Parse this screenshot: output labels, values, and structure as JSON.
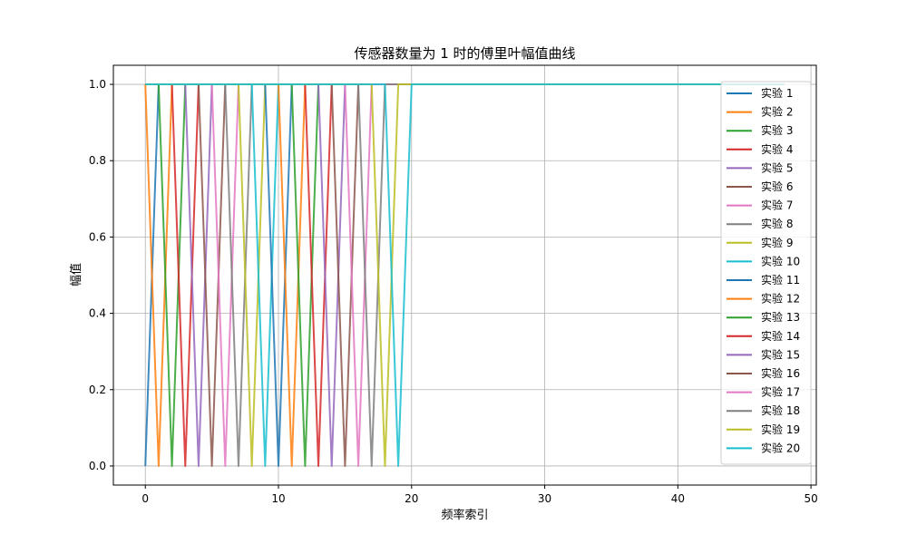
{
  "chart_data": {
    "type": "line",
    "title": "传感器数量为 1 时的傅里叶幅值曲线",
    "xlabel": "频率索引",
    "ylabel": "幅值",
    "xlim": [
      -2.4,
      50.4
    ],
    "ylim": [
      -0.05,
      1.05
    ],
    "xticks": [
      0,
      10,
      20,
      30,
      40,
      50
    ],
    "yticks": [
      0.0,
      0.2,
      0.4,
      0.6,
      0.8,
      1.0
    ],
    "xtick_labels": [
      "0",
      "10",
      "20",
      "30",
      "40",
      "50"
    ],
    "ytick_labels": [
      "0.0",
      "0.2",
      "0.4",
      "0.6",
      "0.8",
      "1.0"
    ],
    "grid": true,
    "legend_position": "right",
    "x": [
      0,
      1,
      2,
      3,
      4,
      5,
      6,
      7,
      8,
      9,
      10,
      11,
      12,
      13,
      14,
      15,
      16,
      17,
      18,
      19,
      20,
      21,
      22,
      23,
      24,
      25,
      26,
      27,
      28,
      29,
      30,
      31,
      32,
      33,
      34,
      35,
      36,
      37,
      38,
      39,
      40,
      41,
      42,
      43,
      44,
      45,
      46,
      47,
      48
    ],
    "series": [
      {
        "name": "实验 1",
        "color": "#1f77b4",
        "peak": 0
      },
      {
        "name": "实验 2",
        "color": "#ff7f0e",
        "peak": 1
      },
      {
        "name": "实验 3",
        "color": "#2ca02c",
        "peak": 2
      },
      {
        "name": "实验 4",
        "color": "#d62728",
        "peak": 3
      },
      {
        "name": "实验 5",
        "color": "#9467bd",
        "peak": 4
      },
      {
        "name": "实验 6",
        "color": "#8c564b",
        "peak": 5
      },
      {
        "name": "实验 7",
        "color": "#e377c2",
        "peak": 6
      },
      {
        "name": "实验 8",
        "color": "#7f7f7f",
        "peak": 7
      },
      {
        "name": "实验 9",
        "color": "#bcbd22",
        "peak": 8
      },
      {
        "name": "实验 10",
        "color": "#17becf",
        "peak": 9
      },
      {
        "name": "实验 11",
        "color": "#1f77b4",
        "peak": 10
      },
      {
        "name": "实验 12",
        "color": "#ff7f0e",
        "peak": 11
      },
      {
        "name": "实验 13",
        "color": "#2ca02c",
        "peak": 12
      },
      {
        "name": "实验 14",
        "color": "#d62728",
        "peak": 13
      },
      {
        "name": "实验 15",
        "color": "#9467bd",
        "peak": 14
      },
      {
        "name": "实验 16",
        "color": "#8c564b",
        "peak": 15
      },
      {
        "name": "实验 17",
        "color": "#e377c2",
        "peak": 16
      },
      {
        "name": "实验 18",
        "color": "#7f7f7f",
        "peak": 17
      },
      {
        "name": "实验 19",
        "color": "#bcbd22",
        "peak": 18
      },
      {
        "name": "实验 20",
        "color": "#17becf",
        "peak": 19
      }
    ]
  }
}
